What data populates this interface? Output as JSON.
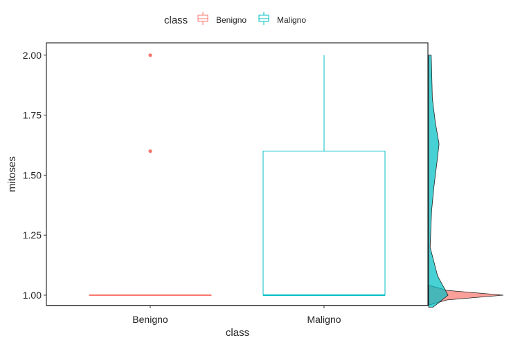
{
  "chart_data": {
    "type": "boxplot",
    "xlabel": "class",
    "ylabel": "mitoses",
    "ylim": [
      0.95,
      2.05
    ],
    "y_ticks": [
      "1.00",
      "1.25",
      "1.50",
      "1.75",
      "2.00"
    ],
    "categories": [
      "Benigno",
      "Maligno"
    ],
    "legend": {
      "title": "class",
      "position": "top",
      "items": [
        "Benigno",
        "Maligno"
      ]
    },
    "colors": {
      "Benigno": "#F8766D",
      "Maligno": "#00BFC4"
    },
    "boxes": [
      {
        "category": "Benigno",
        "min": 1.0,
        "q1": 1.0,
        "median": 1.0,
        "q3": 1.0,
        "max": 1.0,
        "outliers": [
          1.6,
          2.0
        ]
      },
      {
        "category": "Maligno",
        "min": 1.0,
        "q1": 1.0,
        "median": 1.0,
        "q3": 1.6,
        "max": 2.0,
        "outliers": []
      }
    ],
    "marginal_density": {
      "side": "right",
      "Benigno": [
        [
          0.96,
          0.02
        ],
        [
          0.98,
          0.25
        ],
        [
          1.0,
          1.0
        ],
        [
          1.02,
          0.25
        ],
        [
          1.04,
          0.02
        ]
      ],
      "Maligno": [
        [
          0.95,
          0.06
        ],
        [
          1.0,
          0.26
        ],
        [
          1.08,
          0.12
        ],
        [
          1.2,
          0.02
        ],
        [
          1.35,
          0.04
        ],
        [
          1.45,
          0.07
        ],
        [
          1.55,
          0.11
        ],
        [
          1.63,
          0.14
        ],
        [
          1.72,
          0.09
        ],
        [
          1.82,
          0.05
        ],
        [
          1.95,
          0.04
        ],
        [
          2.0,
          0.035
        ]
      ]
    }
  }
}
